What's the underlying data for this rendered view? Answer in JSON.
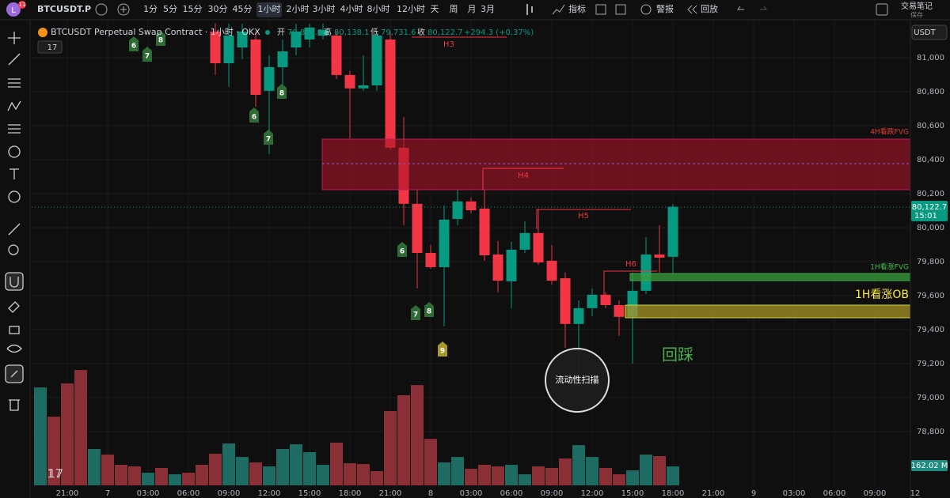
{
  "toolbar": {
    "avatar": "L",
    "badge": "11",
    "symbol": "BTCUSDT.P",
    "intervals": [
      "1分",
      "5分",
      "15分",
      "30分",
      "45分",
      "1小时",
      "2小时",
      "3小时",
      "4小时",
      "8小时",
      "12小时",
      "天",
      "周",
      "月",
      "3月"
    ],
    "active_interval": 5,
    "indicators": "指标",
    "alerts": "警报",
    "replay": "回放",
    "notes": "交易笔记",
    "save": "保存"
  },
  "legend": {
    "title": "BTCUSDT Perpetual Swap Contract · 1小时 · OKX",
    "open_label": "开",
    "open": "79,828.3",
    "high_label": "高",
    "high": "80,138.1",
    "low_label": "低",
    "low": "79,731.6",
    "close_label": "收",
    "close": "80,122.7",
    "change": "+294.3 (+0.37%)",
    "indicator_count": 17
  },
  "chart_data": {
    "type": "candlestick",
    "currency": "USDT",
    "ylim": [
      78409,
      81116
    ],
    "yticks": [
      {
        "value": 81000,
        "label": "81,000"
      },
      {
        "value": 80800,
        "label": "80,800"
      },
      {
        "value": 80600,
        "label": "80,600"
      },
      {
        "value": 80400,
        "label": "80,400"
      },
      {
        "value": 80200,
        "label": "80,200"
      },
      {
        "value": 80000,
        "label": "80,000"
      },
      {
        "value": 79800,
        "label": "79,800"
      },
      {
        "value": 79600,
        "label": "79,600"
      },
      {
        "value": 79400,
        "label": "79,400"
      },
      {
        "value": 79200,
        "label": "79,200"
      },
      {
        "value": 79000,
        "label": "79,000"
      },
      {
        "value": 78800,
        "label": "78,800"
      }
    ],
    "x_labels": [
      "21:00",
      "7",
      "03:00",
      "06:00",
      "09:00",
      "12:00",
      "15:00",
      "18:00",
      "21:00",
      "8",
      "03:00",
      "06:00",
      "09:00",
      "12:00",
      "15:00",
      "18:00",
      "21:00",
      "9",
      "03:00",
      "06:00",
      "09:00",
      "12"
    ],
    "open": [
      81154,
      80967,
      81060,
      81107,
      80805,
      80944,
      81060,
      81107,
      81130,
      81130,
      80898,
      80819,
      80837,
      81107,
      80470,
      80140,
      79851,
      79767,
      80051,
      80154,
      80112,
      79842,
      79684,
      79870,
      79968,
      79805,
      79702,
      79433,
      79526,
      79605,
      79544,
      79475,
      79628,
      79842,
      79828.3
    ],
    "high": [
      81200,
      81200,
      81200,
      81154,
      81014,
      81107,
      81200,
      81200,
      81200,
      81154,
      80921,
      81014,
      81154,
      81154,
      80651,
      80223,
      79898,
      80130,
      80223,
      80177,
      80223,
      79921,
      79916,
      80037,
      80107,
      79898,
      79735,
      79572,
      79642,
      79619,
      79572,
      79735,
      79944,
      80014,
      80138.1
    ],
    "low": [
      80898,
      80828,
      80991,
      80712,
      80433,
      80828,
      81014,
      81060,
      81107,
      80874,
      80526,
      80805,
      80805,
      80456,
      80014,
      79642,
      79758,
      79419,
      80014,
      80084,
      79805,
      79619,
      79526,
      79851,
      79781,
      79665,
      79293,
      79154,
      79479,
      79526,
      79363,
      79200,
      79609,
      79735,
      79731.6
    ],
    "close": [
      80967,
      81130,
      81154,
      80781,
      80944,
      81037,
      81154,
      81177,
      81163,
      80898,
      80819,
      80837,
      81130,
      80470,
      80140,
      79851,
      79767,
      80047,
      80154,
      80102,
      79837,
      79688,
      79870,
      79968,
      79795,
      79688,
      79433,
      79526,
      79605,
      79544,
      79475,
      79628,
      79842,
      79823,
      80122.7
    ],
    "up_color": "#089981",
    "down_color": "#f23645",
    "last_price_label": "80,122.7",
    "countdown": "15:01",
    "volume": {
      "ylim": [
        0,
        1000
      ],
      "last_label": "162.02 M",
      "values": [
        837,
        587,
        871,
        986,
        311,
        263,
        176,
        162,
        108,
        149,
        95,
        108,
        176,
        270,
        358,
        243,
        196,
        162,
        311,
        351,
        284,
        176,
        365,
        189,
        182,
        122,
        635,
        770,
        857,
        398,
        196,
        243,
        142,
        176,
        162,
        176,
        95,
        162,
        149,
        230,
        344,
        243,
        149,
        95,
        128,
        263,
        250,
        162.02
      ],
      "colors": [
        "#1e6b63",
        "#8a2f36",
        "#8a2f36",
        "#8a2f36",
        "#1e6b63",
        "#8a2f36",
        "#8a2f36",
        "#8a2f36",
        "#1e6b63",
        "#8a2f36",
        "#1e6b63",
        "#8a2f36",
        "#8a2f36",
        "#8a2f36",
        "#1e6b63",
        "#1e6b63",
        "#8a2f36",
        "#1e6b63",
        "#1e6b63",
        "#1e6b63",
        "#1e6b63",
        "#1e6b63",
        "#8a2f36",
        "#8a2f36",
        "#8a2f36",
        "#8a2f36",
        "#8a2f36",
        "#8a2f36",
        "#8a2f36",
        "#8a2f36",
        "#1e6b63",
        "#1e6b63",
        "#8a2f36",
        "#8a2f36",
        "#8a2f36",
        "#1e6b63",
        "#1e6b63",
        "#8a2f36",
        "#8a2f36",
        "#8a2f36",
        "#1e6b63",
        "#1e6b63",
        "#8a2f36",
        "#8a2f36",
        "#1e6b63",
        "#1e6b63",
        "#8a2f36",
        "#1e6b63"
      ]
    },
    "td_counts": [
      6,
      7,
      8,
      6,
      7,
      8,
      6,
      7,
      8,
      9
    ],
    "annotations": {
      "h3": "H3",
      "h4": "H4",
      "h5": "H5",
      "h6": "H6",
      "fvg_4h": "4H看跌FVG",
      "fvg_1h": "1H看涨FVG",
      "ob_1h": "1H看涨OB",
      "retest": "回踩",
      "sweep": "流动性扫描"
    }
  }
}
